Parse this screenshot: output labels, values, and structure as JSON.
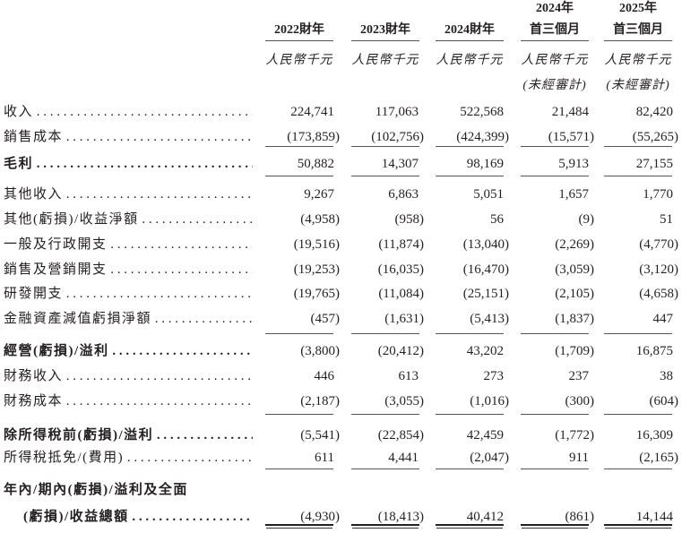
{
  "columns": [
    {
      "year": "",
      "period": "2022財年",
      "unit": "人民幣千元",
      "audit": ""
    },
    {
      "year": "",
      "period": "2023財年",
      "unit": "人民幣千元",
      "audit": ""
    },
    {
      "year": "",
      "period": "2024財年",
      "unit": "人民幣千元",
      "audit": ""
    },
    {
      "year": "2024年",
      "period": "首三個月",
      "unit": "人民幣千元",
      "audit": "(未經審計)"
    },
    {
      "year": "2025年",
      "period": "首三個月",
      "unit": "人民幣千元",
      "audit": "(未經審計)"
    }
  ],
  "rows": [
    {
      "label": "收入",
      "bold": false,
      "values": [
        "224,741",
        "117,063",
        "522,568",
        "21,484",
        "82,420"
      ]
    },
    {
      "label": "銷售成本",
      "bold": false,
      "values": [
        "(173,859)",
        "(102,756)",
        "(424,399)",
        "(15,571)",
        "(55,265)"
      ]
    },
    {
      "label": "毛利",
      "bold": true,
      "values": [
        "50,882",
        "14,307",
        "98,169",
        "5,913",
        "27,155"
      ]
    },
    {
      "label": "其他收入",
      "bold": false,
      "values": [
        "9,267",
        "6,863",
        "5,051",
        "1,657",
        "1,770"
      ]
    },
    {
      "label": "其他(虧損)/收益淨額",
      "bold": false,
      "values": [
        "(4,958)",
        "(958)",
        "56",
        "(9)",
        "51"
      ]
    },
    {
      "label": "一般及行政開支",
      "bold": false,
      "values": [
        "(19,516)",
        "(11,874)",
        "(13,040)",
        "(2,269)",
        "(4,770)"
      ]
    },
    {
      "label": "銷售及營銷開支",
      "bold": false,
      "values": [
        "(19,253)",
        "(16,035)",
        "(16,470)",
        "(3,059)",
        "(3,120)"
      ]
    },
    {
      "label": "研發開支",
      "bold": false,
      "values": [
        "(19,765)",
        "(11,084)",
        "(25,151)",
        "(2,105)",
        "(4,658)"
      ]
    },
    {
      "label": "金融資產減值虧損淨額",
      "bold": false,
      "values": [
        "(457)",
        "(1,631)",
        "(5,413)",
        "(1,837)",
        "447"
      ]
    },
    {
      "label": "經營(虧損)/溢利",
      "bold": true,
      "values": [
        "(3,800)",
        "(20,412)",
        "43,202",
        "(1,709)",
        "16,875"
      ]
    },
    {
      "label": "財務收入",
      "bold": false,
      "values": [
        "446",
        "613",
        "273",
        "237",
        "38"
      ]
    },
    {
      "label": "財務成本",
      "bold": false,
      "values": [
        "(2,187)",
        "(3,055)",
        "(1,016)",
        "(300)",
        "(604)"
      ]
    },
    {
      "label": "除所得稅前(虧損)/溢利",
      "bold": true,
      "values": [
        "(5,541)",
        "(22,854)",
        "42,459",
        "(1,772)",
        "16,309"
      ]
    },
    {
      "label": "所得稅抵免/(費用)",
      "bold": false,
      "values": [
        "611",
        "4,441",
        "(2,047)",
        "911",
        "(2,165)"
      ]
    },
    {
      "label": "年內/期內(虧損)/溢利及全面",
      "label2": "(虧損)/收益總額",
      "bold": true,
      "values": [
        "(4,930)",
        "(18,413)",
        "40,412",
        "(861)",
        "14,144"
      ]
    }
  ]
}
